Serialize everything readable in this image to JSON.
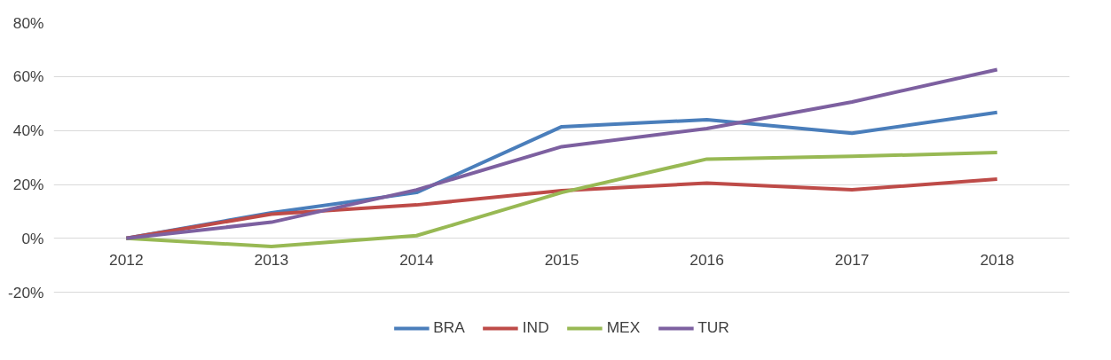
{
  "chart_data": {
    "type": "line",
    "categories": [
      "2012",
      "2013",
      "2014",
      "2015",
      "2016",
      "2017",
      "2018"
    ],
    "series": [
      {
        "name": "BRA",
        "color": "#4a7ebb",
        "values": [
          0,
          9.5,
          17,
          41.4,
          44,
          39,
          46.7
        ]
      },
      {
        "name": "IND",
        "color": "#be4b48",
        "values": [
          0,
          9,
          12.4,
          17.7,
          20.5,
          18,
          22
        ]
      },
      {
        "name": "MEX",
        "color": "#98b954",
        "values": [
          0,
          -3,
          1,
          17,
          29.4,
          30.4,
          31.8
        ]
      },
      {
        "name": "TUR",
        "color": "#7d60a0",
        "values": [
          0,
          6,
          18,
          34,
          40.7,
          50.6,
          62.6
        ]
      }
    ],
    "ylim": [
      -20,
      80
    ],
    "yticks": [
      {
        "value": -20,
        "label": "-20%"
      },
      {
        "value": 0,
        "label": "0%"
      },
      {
        "value": 20,
        "label": "20%"
      },
      {
        "value": 40,
        "label": "40%"
      },
      {
        "value": 60,
        "label": "60%"
      },
      {
        "value": 80,
        "label": "80%"
      }
    ],
    "grid": "y",
    "legend": "bottom",
    "marker": "none",
    "line_style": "solid"
  }
}
